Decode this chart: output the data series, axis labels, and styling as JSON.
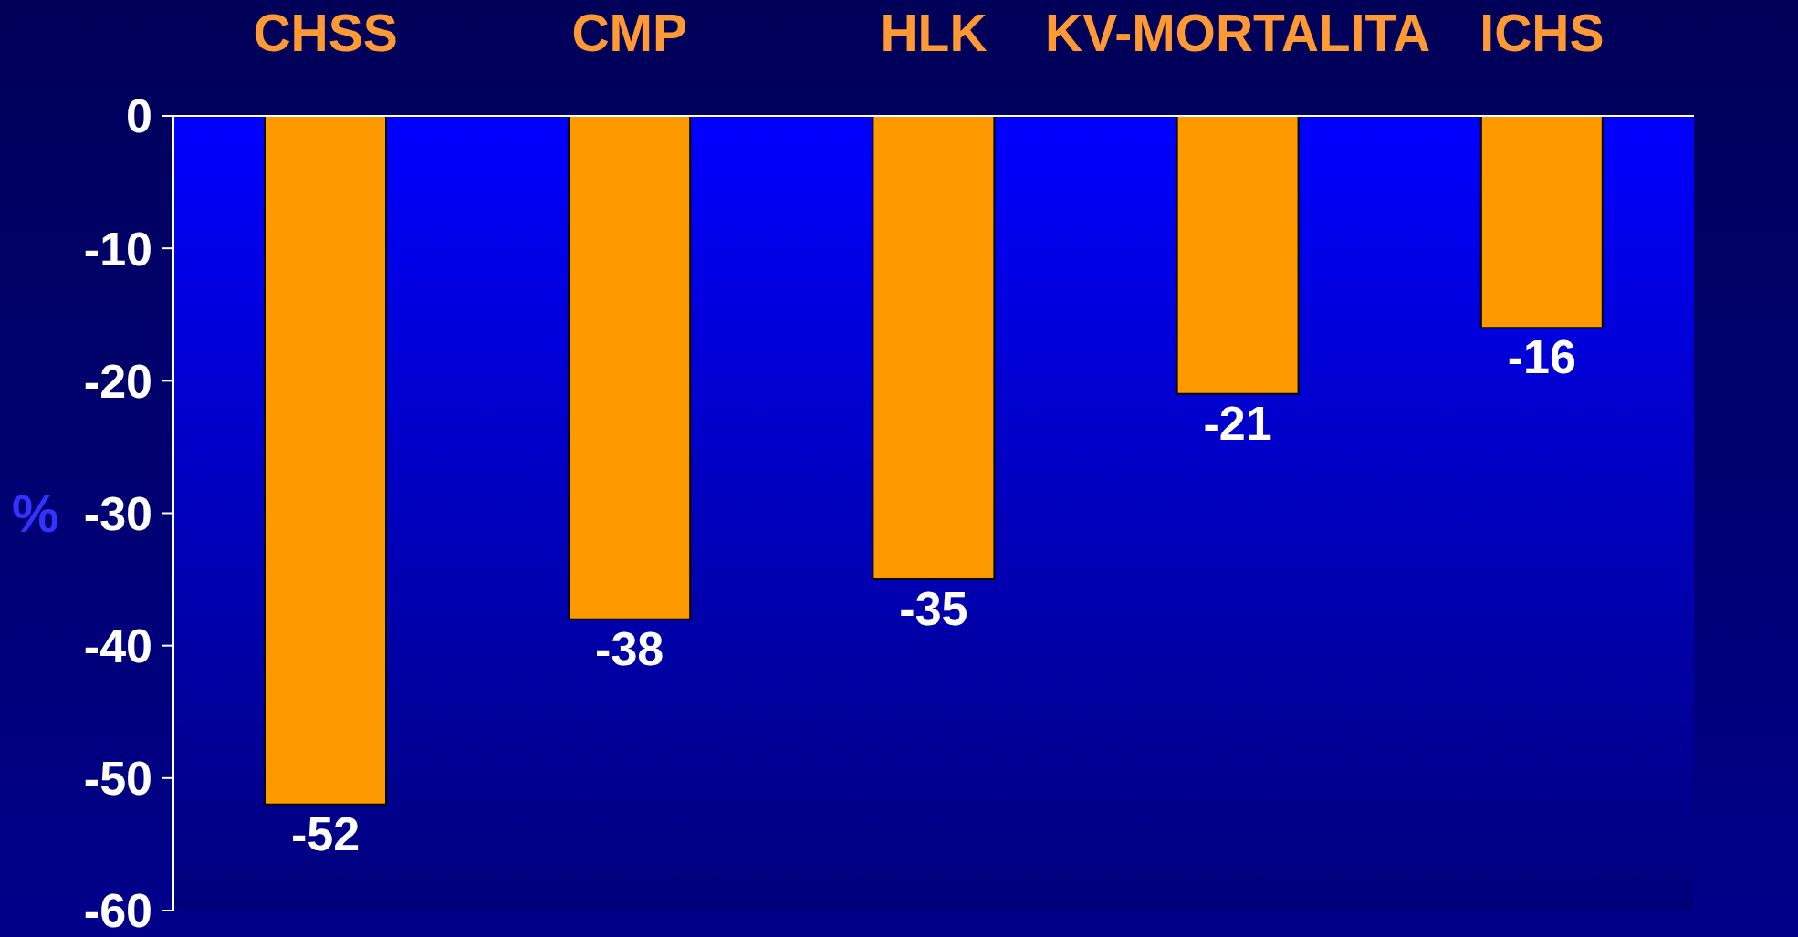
{
  "chart_data": {
    "type": "bar",
    "categories": [
      "CHSS",
      "CMP",
      "HLK",
      "KV-MORTALITA",
      "ICHS"
    ],
    "values": [
      -52,
      -38,
      -35,
      -21,
      -16
    ],
    "color": "#ff9900",
    "ylabel": "%",
    "ylim": [
      -60,
      0
    ],
    "yticks": [
      -60,
      -50,
      -40,
      -30,
      -20,
      -10,
      0
    ],
    "data_labels": true
  }
}
